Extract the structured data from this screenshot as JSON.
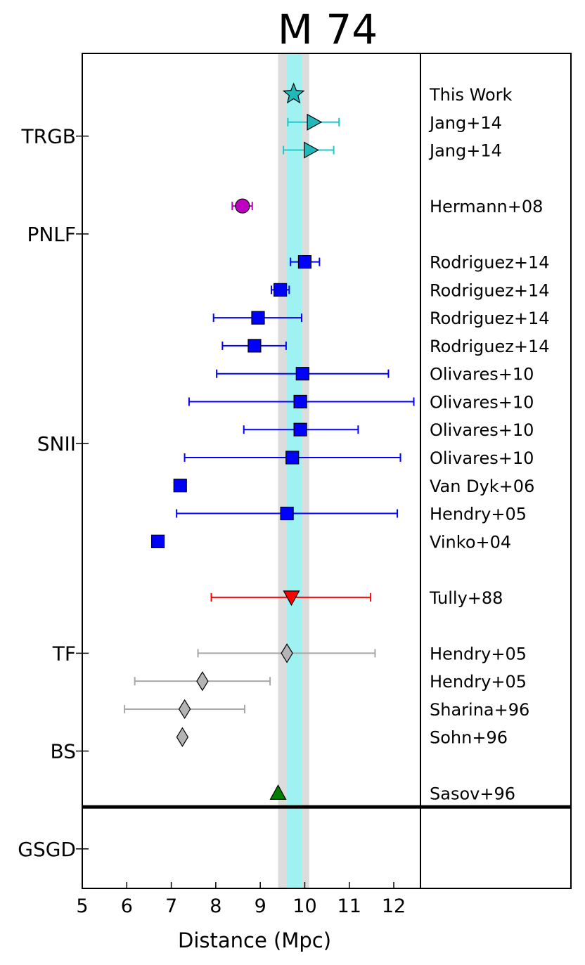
{
  "chart_data": {
    "type": "scatter",
    "title": "M 74",
    "xlabel": "Distance (Mpc)",
    "xlim": [
      5,
      12.6
    ],
    "x_ticks": [
      "5",
      "6",
      "7",
      "8",
      "9",
      "10",
      "11",
      "12"
    ],
    "shaded_bands": [
      {
        "name": "outer",
        "lo": 9.4,
        "hi": 10.1,
        "color": "#dcdcdc"
      },
      {
        "name": "inner",
        "lo": 9.6,
        "hi": 9.93,
        "color": "#9ff2f2"
      }
    ],
    "method_labels": [
      {
        "label": "TRGB",
        "row": 1.5
      },
      {
        "label": "PNLF",
        "row": 5
      },
      {
        "label": "SNII",
        "row": 12.5
      },
      {
        "label": "TF",
        "row": 20
      },
      {
        "label": "BS",
        "row": 23.5
      },
      {
        "label": "GSGD",
        "row": 27
      }
    ],
    "divider_after_row": 25.5,
    "points": [
      {
        "row": 0,
        "ref": "This Work",
        "x": 9.75,
        "marker": "star",
        "color": "#20b8b8",
        "ecolor": "#20c8c8"
      },
      {
        "row": 1,
        "ref": "Jang+14",
        "x": 10.2,
        "xerr": [
          9.62,
          10.77
        ],
        "marker": "tri-right",
        "color": "#20b8b8",
        "ecolor": "#20c8c8"
      },
      {
        "row": 2,
        "ref": "Jang+14",
        "x": 10.13,
        "xerr": [
          9.52,
          10.65
        ],
        "marker": "tri-right",
        "color": "#20b8b8",
        "ecolor": "#20c8c8"
      },
      {
        "row": 4,
        "ref": "Hermann+08",
        "x": 8.6,
        "xerr": [
          8.37,
          8.82
        ],
        "marker": "circle",
        "color": "#c000c0",
        "ecolor": "#c000c0"
      },
      {
        "row": 6,
        "ref": "Rodriguez+14",
        "x": 10.0,
        "xerr": [
          9.68,
          10.33
        ],
        "marker": "square",
        "color": "#0000ff",
        "ecolor": "#0000ff"
      },
      {
        "row": 7,
        "ref": "Rodriguez+14",
        "x": 9.45,
        "xerr": [
          9.25,
          9.65
        ],
        "marker": "square",
        "color": "#0000ff",
        "ecolor": "#0000ff"
      },
      {
        "row": 8,
        "ref": "Rodriguez+14",
        "x": 8.95,
        "xerr": [
          7.95,
          9.93
        ],
        "marker": "square",
        "color": "#0000ff",
        "ecolor": "#0000ff"
      },
      {
        "row": 9,
        "ref": "Rodriguez+14",
        "x": 8.87,
        "xerr": [
          8.15,
          9.58
        ],
        "marker": "square",
        "color": "#0000ff",
        "ecolor": "#0000ff"
      },
      {
        "row": 10,
        "ref": "Olivares+10",
        "x": 9.95,
        "xerr": [
          8.02,
          11.88
        ],
        "marker": "square",
        "color": "#0000ff",
        "ecolor": "#0000ff"
      },
      {
        "row": 11,
        "ref": "Olivares+10",
        "x": 9.9,
        "xerr": [
          7.4,
          12.45
        ],
        "marker": "square",
        "color": "#0000ff",
        "ecolor": "#0000ff"
      },
      {
        "row": 12,
        "ref": "Olivares+10",
        "x": 9.9,
        "xerr": [
          8.63,
          11.2
        ],
        "marker": "square",
        "color": "#0000ff",
        "ecolor": "#0000ff"
      },
      {
        "row": 13,
        "ref": "Olivares+10",
        "x": 9.72,
        "xerr": [
          7.3,
          12.15
        ],
        "marker": "square",
        "color": "#0000ff",
        "ecolor": "#0000ff"
      },
      {
        "row": 14,
        "ref": "Van Dyk+06",
        "x": 7.2,
        "marker": "square",
        "color": "#0000ff",
        "ecolor": "#0000ff"
      },
      {
        "row": 15,
        "ref": "Hendry+05",
        "x": 9.6,
        "xerr": [
          7.12,
          12.08
        ],
        "marker": "square",
        "color": "#0000ff",
        "ecolor": "#0000ff"
      },
      {
        "row": 16,
        "ref": "Vinko+04",
        "x": 6.7,
        "marker": "square",
        "color": "#0000ff",
        "ecolor": "#0000ff"
      },
      {
        "row": 18,
        "ref": "Tully+88",
        "x": 9.7,
        "xerr": [
          7.9,
          11.48
        ],
        "marker": "tri-down",
        "color": "#ff0000",
        "ecolor": "#ff0000"
      },
      {
        "row": 20,
        "ref": "Hendry+05",
        "x": 9.6,
        "xerr": [
          7.6,
          11.58
        ],
        "marker": "diamond",
        "color": "#b4b4b4",
        "ecolor": "#a8a8a8"
      },
      {
        "row": 21,
        "ref": "Hendry+05",
        "x": 7.7,
        "xerr": [
          6.18,
          9.22
        ],
        "marker": "diamond",
        "color": "#b4b4b4",
        "ecolor": "#a8a8a8"
      },
      {
        "row": 22,
        "ref": "Sharina+96",
        "x": 7.3,
        "xerr": [
          5.95,
          8.65
        ],
        "marker": "diamond",
        "color": "#b4b4b4",
        "ecolor": "#a8a8a8"
      },
      {
        "row": 23,
        "ref": "Sohn+96",
        "x": 7.25,
        "marker": "diamond",
        "color": "#b4b4b4",
        "ecolor": "#a8a8a8"
      },
      {
        "row": 25,
        "ref": "Sasov+96",
        "x": 9.4,
        "marker": "tri-up",
        "color": "#008000",
        "ecolor": "#008000"
      }
    ]
  }
}
